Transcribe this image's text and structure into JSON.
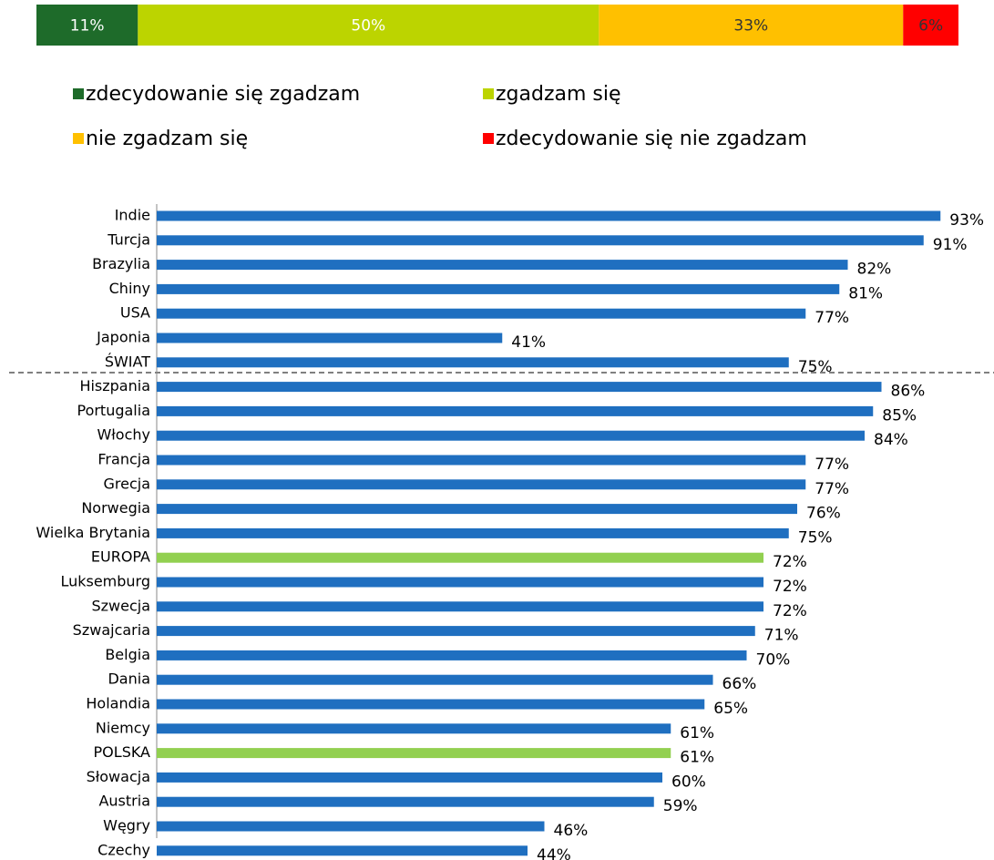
{
  "chart_data": [
    {
      "type": "stacked_bar",
      "orientation": "horizontal",
      "categories": [
        null
      ],
      "xlim": [
        0,
        100
      ],
      "series": [
        {
          "name": "zdecydowanie się zgadzam",
          "color": "#1e6b2a",
          "values": [
            11
          ],
          "value_labels": [
            "11%"
          ]
        },
        {
          "name": "zgadzam się",
          "color": "#bcd400",
          "values": [
            50
          ],
          "value_labels": [
            "50%"
          ]
        },
        {
          "name": "nie zgadzam się",
          "color": "#ffc000",
          "values": [
            33
          ],
          "value_labels": [
            "33%"
          ]
        },
        {
          "name": "zdecydowanie się nie zgadzam",
          "color": "#ff0000",
          "values": [
            6
          ],
          "value_labels": [
            "6%"
          ]
        }
      ],
      "legend": "bottom"
    },
    {
      "type": "bar",
      "orientation": "horizontal",
      "xlim": [
        0,
        100
      ],
      "categories": [
        "Indie",
        "Turcja",
        "Brazylia",
        "Chiny",
        "USA",
        "Japonia",
        "ŚWIAT",
        "Hiszpania",
        "Portugalia",
        "Włochy",
        "Francja",
        "Grecja",
        "Norwegia",
        "Wielka Brytania",
        "EUROPA",
        "Luksemburg",
        "Szwecja",
        "Szwajcaria",
        "Belgia",
        "Dania",
        "Holandia",
        "Niemcy",
        "POLSKA",
        "Słowacja",
        "Austria",
        "Węgry",
        "Czechy"
      ],
      "values": [
        93,
        91,
        82,
        81,
        77,
        41,
        75,
        86,
        85,
        84,
        77,
        77,
        76,
        75,
        72,
        72,
        72,
        71,
        70,
        66,
        65,
        61,
        61,
        60,
        59,
        46,
        44
      ],
      "value_labels": [
        "93%",
        "91%",
        "82%",
        "81%",
        "77%",
        "41%",
        "75%",
        "86%",
        "85%",
        "84%",
        "77%",
        "77%",
        "76%",
        "75%",
        "72%",
        "72%",
        "72%",
        "71%",
        "70%",
        "66%",
        "65%",
        "61%",
        "61%",
        "60%",
        "59%",
        "46%",
        "44%"
      ],
      "colors": [
        "#1f6fc0",
        "#1f6fc0",
        "#1f6fc0",
        "#1f6fc0",
        "#1f6fc0",
        "#1f6fc0",
        "#1f6fc0",
        "#1f6fc0",
        "#1f6fc0",
        "#1f6fc0",
        "#1f6fc0",
        "#1f6fc0",
        "#1f6fc0",
        "#1f6fc0",
        "#92d050",
        "#1f6fc0",
        "#1f6fc0",
        "#1f6fc0",
        "#1f6fc0",
        "#1f6fc0",
        "#1f6fc0",
        "#1f6fc0",
        "#92d050",
        "#1f6fc0",
        "#1f6fc0",
        "#1f6fc0",
        "#1f6fc0"
      ]
    }
  ]
}
